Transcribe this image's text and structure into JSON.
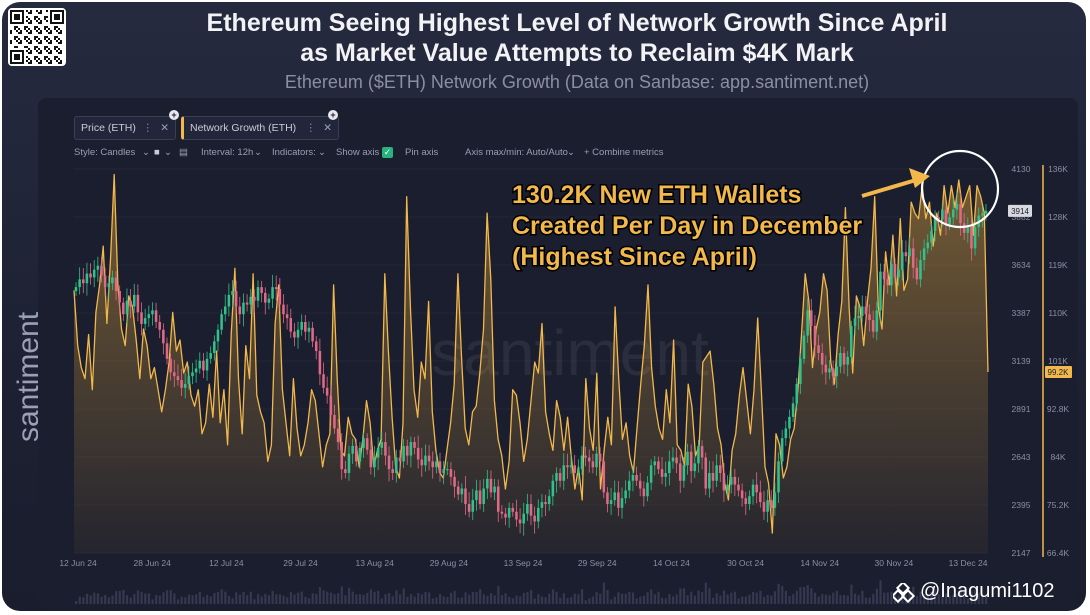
{
  "header": {
    "title_line1": "Ethereum Seeing Highest Level of Network Growth Since April",
    "title_line2": "as Market Value Attempts to Reclaim $4K Mark",
    "subtitle": "Ethereum ($ETH) Network Growth (Data on Sanbase: app.santiment.net)"
  },
  "tabs": [
    {
      "label": "Price (ETH)"
    },
    {
      "label": "Network Growth (ETH)"
    }
  ],
  "toolbar": {
    "style": "Style: Candles",
    "interval": "Interval: 12h",
    "indicators": "Indicators:",
    "show_axis": "Show axis",
    "pin_axis": "Pin axis",
    "axis_minmax": "Axis max/min: Auto/Auto",
    "combine": "+ Combine metrics"
  },
  "watermark": {
    "side": "santiment",
    "center": "santiment"
  },
  "annotation": {
    "line1": "130.2K New ETH Wallets",
    "line2": "Created Per Day in December",
    "line3": "(Highest Since April)"
  },
  "credit": "@Inagumi1102",
  "colors": {
    "growth": "#f2b84b",
    "up": "#2fc28a",
    "down": "#e06a86",
    "bg": "#1b1e2e"
  },
  "chart_data": {
    "type": "line",
    "x_ticks": [
      "12 Jun 24",
      "28 Jun 24",
      "12 Jul 24",
      "29 Jul 24",
      "13 Aug 24",
      "29 Aug 24",
      "13 Sep 24",
      "29 Sep 24",
      "14 Oct 24",
      "30 Oct 24",
      "14 Nov 24",
      "30 Nov 24",
      "13 Dec 24"
    ],
    "price_axis": {
      "ticks": [
        "4130",
        "3882",
        "3634",
        "3387",
        "3139",
        "2891",
        "2643",
        "2395",
        "2147"
      ],
      "current": "3914",
      "range": [
        2147,
        4130
      ]
    },
    "growth_axis": {
      "ticks": [
        "136K",
        "128K",
        "119K",
        "110K",
        "101K",
        "92.8K",
        "84K",
        "75.2K",
        "66.4K"
      ],
      "current": "99.2K",
      "range": [
        66.4,
        136
      ]
    },
    "series": [
      {
        "name": "Network Growth (ETH)",
        "unit": "K",
        "values": [
          114,
          104,
          100,
          98,
          106,
          96,
          110,
          115,
          122,
          108,
          120,
          135,
          115,
          107,
          104,
          113,
          111,
          105,
          98,
          107,
          104,
          98,
          100,
          96,
          92,
          96,
          101,
          110,
          103,
          105,
          99,
          101,
          95,
          93,
          96,
          88,
          90,
          97,
          91,
          103,
          90,
          96,
          86,
          106,
          118,
          98,
          88,
          104,
          98,
          117,
          95,
          92,
          90,
          83,
          86,
          108,
          115,
          96,
          90,
          84,
          98,
          89,
          84,
          86,
          90,
          96,
          94,
          88,
          82,
          86,
          88,
          115,
          98,
          85,
          84,
          91,
          88,
          87,
          82,
          87,
          94,
          90,
          82,
          85,
          87,
          117,
          103,
          91,
          82,
          80,
          90,
          131,
          111,
          96,
          91,
          101,
          98,
          112,
          92,
          85,
          81,
          80,
          85,
          90,
          97,
          117,
          102,
          89,
          86,
          92,
          93,
          99,
          107,
          128,
          116,
          94,
          87,
          84,
          78,
          83,
          96,
          95,
          90,
          83,
          87,
          94,
          101,
          99,
          108,
          92,
          88,
          85,
          94,
          91,
          85,
          91,
          84,
          78,
          82,
          76,
          98,
          89,
          85,
          99,
          78,
          85,
          91,
          86,
          111,
          98,
          87,
          90,
          84,
          81,
          89,
          97,
          104,
          115,
          100,
          93,
          89,
          87,
          96,
          90,
          105,
          86,
          85,
          82,
          97,
          93,
          84,
          86,
          101,
          102,
          103,
          97,
          89,
          86,
          79,
          76,
          85,
          88,
          95,
          100,
          94,
          88,
          96,
          109,
          96,
          82,
          79,
          70,
          88,
          86,
          80,
          82,
          87,
          89,
          96,
          106,
          117,
          112,
          100,
          107,
          110,
          117,
          114,
          101,
          97,
          106,
          112,
          129,
          111,
          99,
          113,
          111,
          104,
          112,
          118,
          131,
          111,
          107,
          121,
          115,
          124,
          113,
          127,
          114,
          116,
          130,
          128,
          127,
          133,
          127,
          130,
          122,
          128,
          124,
          133,
          128,
          133,
          129,
          134,
          129,
          131,
          133,
          124,
          133,
          131,
          128,
          99.2
        ]
      },
      {
        "name": "Price (ETH)",
        "unit": "USD",
        "values": [
          3520,
          3560,
          3540,
          3590,
          3570,
          3610,
          3630,
          3580,
          3520,
          3540,
          3570,
          3500,
          3440,
          3380,
          3450,
          3420,
          3480,
          3390,
          3330,
          3360,
          3380,
          3400,
          3340,
          3300,
          3230,
          3150,
          3080,
          3060,
          3040,
          3000,
          3020,
          3060,
          3080,
          3100,
          3140,
          3090,
          3150,
          3180,
          3240,
          3300,
          3380,
          3420,
          3480,
          3500,
          3420,
          3380,
          3440,
          3430,
          3470,
          3450,
          3520,
          3490,
          3440,
          3460,
          3520,
          3510,
          3430,
          3380,
          3360,
          3290,
          3260,
          3300,
          3340,
          3290,
          3310,
          3240,
          3190,
          3070,
          3000,
          2960,
          2860,
          2790,
          2720,
          2580,
          2560,
          2660,
          2700,
          2620,
          2690,
          2740,
          2680,
          2590,
          2640,
          2690,
          2720,
          2650,
          2580,
          2560,
          2640,
          2620,
          2700,
          2650,
          2720,
          2690,
          2630,
          2600,
          2650,
          2620,
          2590,
          2620,
          2560,
          2580,
          2580,
          2540,
          2490,
          2450,
          2480,
          2400,
          2360,
          2420,
          2470,
          2400,
          2480,
          2530,
          2460,
          2490,
          2360,
          2350,
          2330,
          2380,
          2360,
          2320,
          2300,
          2350,
          2400,
          2340,
          2310,
          2380,
          2410,
          2400,
          2440,
          2520,
          2560,
          2520,
          2600,
          2590,
          2600,
          2560,
          2580,
          2650,
          2640,
          2620,
          2590,
          2660,
          2620,
          2460,
          2400,
          2420,
          2460,
          2380,
          2430,
          2470,
          2520,
          2550,
          2520,
          2480,
          2440,
          2510,
          2600,
          2620,
          2580,
          2540,
          2560,
          2620,
          2640,
          2610,
          2520,
          2600,
          2670,
          2570,
          2610,
          2700,
          2640,
          2480,
          2560,
          2520,
          2600,
          2560,
          2470,
          2500,
          2540,
          2500,
          2470,
          2430,
          2400,
          2440,
          2500,
          2460,
          2410,
          2360,
          2420,
          2380,
          2460,
          2620,
          2740,
          2790,
          2850,
          2920,
          3020,
          3150,
          3270,
          3400,
          3320,
          3220,
          3180,
          3120,
          3080,
          3100,
          3060,
          3110,
          3180,
          3120,
          3160,
          3320,
          3360,
          3370,
          3420,
          3380,
          3350,
          3290,
          3400,
          3600,
          3560,
          3530,
          3640,
          3570,
          3610,
          3700,
          3680,
          3720,
          3620,
          3560,
          3660,
          3720,
          3750,
          3810,
          3880,
          3870,
          3920,
          3840,
          3880,
          3920,
          3950,
          3850,
          3800,
          3830,
          3720,
          3830,
          3890,
          3900,
          3914
        ]
      }
    ]
  }
}
